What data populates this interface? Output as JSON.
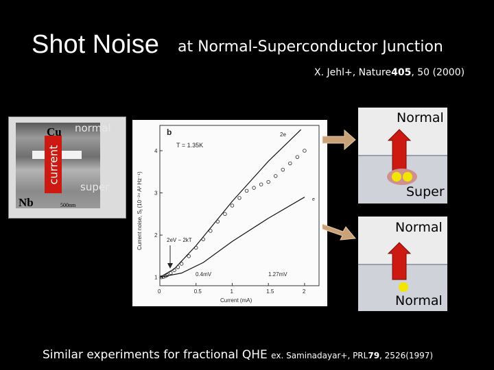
{
  "title": {
    "main": "Shot Noise",
    "sub": "at Normal-Superconductor Junction"
  },
  "reference_top": {
    "prefix": "X. Jehl+, Nature",
    "volume": "405",
    "suffix": ", 50 (2000)"
  },
  "micrograph": {
    "cu_label": "Cu",
    "nb_label": "Nb",
    "scale_label": "500nm",
    "current_label": "current",
    "normal_label": "normal",
    "super_label": "super"
  },
  "plot": {
    "panel_letter": "b",
    "temperature_label": "T = 1.35K",
    "ylabel": "Current noise, S",
    "ylabel_units": "(10⁻²⁴ A² Hz⁻¹)",
    "xlabel": "Current (mA)",
    "curve_label_2e": "2e",
    "curve_label_e": "e",
    "annotation_2ev": "2eV − 2kT",
    "annotation_04mv": "0.4mV",
    "annotation_127mv": "1.27mV",
    "xticks": [
      "0",
      "0.5",
      "1",
      "1.5",
      "2"
    ],
    "yticks": [
      "1",
      "2",
      "3",
      "4"
    ]
  },
  "chart_data": {
    "type": "scatter",
    "title": "",
    "xlabel": "Current (mA)",
    "ylabel": "Current noise, S_I (10⁻²⁴ A² Hz⁻¹)",
    "xlim": [
      0,
      2.2
    ],
    "ylim": [
      0.8,
      4.6
    ],
    "series": [
      {
        "name": "",
        "points": [
          [
            0.02,
            1.0
          ],
          [
            0.05,
            1.01
          ],
          [
            0.08,
            1.03
          ],
          [
            0.1,
            1.05
          ],
          [
            0.15,
            1.1
          ],
          [
            0.2,
            1.17
          ],
          [
            0.25,
            1.24
          ],
          [
            0.3,
            1.32
          ],
          [
            0.4,
            1.5
          ],
          [
            0.5,
            1.7
          ],
          [
            0.6,
            1.9
          ],
          [
            0.7,
            2.1
          ],
          [
            0.8,
            2.32
          ],
          [
            0.9,
            2.5
          ],
          [
            1.0,
            2.7
          ],
          [
            1.1,
            2.88
          ],
          [
            1.2,
            3.05
          ],
          [
            1.3,
            3.12
          ],
          [
            1.4,
            3.2
          ],
          [
            1.5,
            3.26
          ],
          [
            1.6,
            3.4
          ],
          [
            1.7,
            3.55
          ],
          [
            1.8,
            3.7
          ],
          [
            1.9,
            3.85
          ],
          [
            2.0,
            4.0
          ]
        ]
      },
      {
        "name": "2e",
        "points": [
          [
            0.0,
            1.0
          ],
          [
            0.2,
            1.2
          ],
          [
            0.5,
            1.75
          ],
          [
            1.0,
            2.8
          ],
          [
            1.5,
            3.75
          ],
          [
            1.95,
            4.5
          ]
        ]
      },
      {
        "name": "e",
        "points": [
          [
            0.0,
            1.0
          ],
          [
            0.3,
            1.1
          ],
          [
            0.6,
            1.35
          ],
          [
            1.0,
            1.85
          ],
          [
            1.5,
            2.4
          ],
          [
            2.0,
            2.9
          ]
        ]
      }
    ]
  },
  "right_panels": {
    "panel1_top_label": "Normal",
    "panel1_bottom_label": "Super",
    "panel2_top_label": "Normal",
    "panel2_bottom_label": "Normal"
  },
  "footer": {
    "main": "Similar experiments for fractional QHE",
    "ref_prefix": "ex. Saminadayar+, PRL",
    "ref_volume": "79",
    "ref_suffix": ", 2526(1997)"
  },
  "colors": {
    "background": "#000000",
    "arrow_red": "#cc1a12",
    "arrow_tan": "#c9a27a",
    "dot_yellow": "#f2e600"
  }
}
